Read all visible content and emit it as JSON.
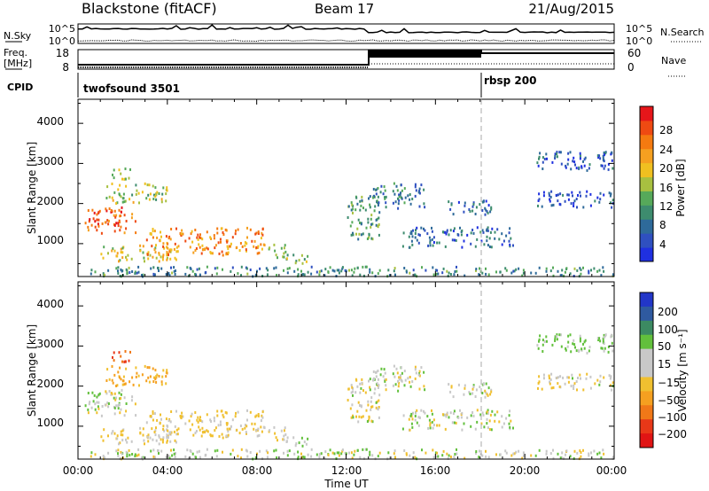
{
  "header": {
    "station": "Blackstone (fitACF)",
    "beam": "Beam 17",
    "date": "21/Aug/2015"
  },
  "noise_panel": {
    "left_label": "N.Sky",
    "left_ticks": [
      "10^5",
      "10^0"
    ],
    "right_ticks": [
      "10^5",
      "10^0"
    ],
    "right_label": "N.Search"
  },
  "freq_panel": {
    "left_label_1": "Freq.",
    "left_label_2": "[MHz]",
    "left_ticks": [
      "18",
      "8"
    ],
    "right_ticks": [
      "60",
      "0"
    ],
    "right_label": "Nave"
  },
  "cpid_panel": {
    "label": "CPID",
    "segments": [
      {
        "name": "twofsound 3501",
        "start_hour": 0
      },
      {
        "name": "rbsp 200",
        "start_hour": 18
      }
    ]
  },
  "x_axis": {
    "label": "Time UT",
    "ticks": [
      "00:00",
      "04:00",
      "08:00",
      "12:00",
      "16:00",
      "20:00",
      "00:00"
    ],
    "range_hours": [
      0,
      24
    ]
  },
  "power_panel": {
    "ylabel": "Slant Range [km]",
    "yticks": [
      "1000",
      "2000",
      "3000",
      "4000"
    ],
    "colorbar_label": "Power [dB]",
    "colorbar_ticks": [
      "4",
      "8",
      "12",
      "16",
      "20",
      "24",
      "28"
    ],
    "colors": [
      "#1f30e0",
      "#2f50c0",
      "#2e6a9a",
      "#3d8c6e",
      "#56a95a",
      "#a8c040",
      "#f0c020",
      "#f5a020",
      "#f57a10",
      "#ef4a12",
      "#e6161a"
    ]
  },
  "velocity_panel": {
    "ylabel": "Slant Range [km]",
    "yticks": [
      "1000",
      "2000",
      "3000",
      "4000"
    ],
    "colorbar_label": "Velocity [m s⁻¹]",
    "colorbar_ticks": [
      "200",
      "100",
      "50",
      "15",
      "−15",
      "−50",
      "−100",
      "−200"
    ],
    "colors": [
      "#2236c8",
      "#2f5aa0",
      "#3c8a62",
      "#62c03c",
      "#c8c8c8",
      "#c8c8c8",
      "#f0c030",
      "#f5a020",
      "#f07818",
      "#e83818",
      "#e01414"
    ]
  },
  "chart_data": {
    "type": "heatmap",
    "x_range_hours": [
      0,
      24
    ],
    "y_range_km": [
      180,
      4600
    ],
    "scatter_regions": [
      {
        "t0": 0.2,
        "t1": 2.6,
        "r0": 1250,
        "r1": 1900,
        "power": 26,
        "vel": 0
      },
      {
        "t0": 1.2,
        "t1": 4.0,
        "r0": 2000,
        "r1": 2500,
        "power": 16,
        "vel": -60
      },
      {
        "t0": 1.5,
        "t1": 2.5,
        "r0": 2600,
        "r1": 2900,
        "power": 14,
        "vel": -150
      },
      {
        "t0": 1.0,
        "t1": 4.5,
        "r0": 550,
        "r1": 950,
        "power": 18,
        "vel": -20
      },
      {
        "t0": 3.0,
        "t1": 8.4,
        "r0": 700,
        "r1": 1400,
        "power": 23,
        "vel": -20
      },
      {
        "t0": 8.4,
        "t1": 9.4,
        "r0": 650,
        "r1": 1000,
        "power": 12,
        "vel": -10
      },
      {
        "t0": 9.2,
        "t1": 10.3,
        "r0": 500,
        "r1": 750,
        "power": 14,
        "vel": 5
      },
      {
        "t0": 10.5,
        "t1": 12.5,
        "r0": 280,
        "r1": 420,
        "power": 10,
        "vel": 20
      },
      {
        "t0": 12.0,
        "t1": 13.5,
        "r0": 1100,
        "r1": 2200,
        "power": 12,
        "vel": -10
      },
      {
        "t0": 13.0,
        "t1": 15.5,
        "r0": 1850,
        "r1": 2500,
        "power": 9,
        "vel": 0
      },
      {
        "t0": 14.5,
        "t1": 19.5,
        "r0": 900,
        "r1": 1400,
        "power": 7,
        "vel": 0
      },
      {
        "t0": 16.5,
        "t1": 18.5,
        "r0": 1700,
        "r1": 2100,
        "power": 6,
        "vel": 0
      },
      {
        "t0": 20.5,
        "t1": 24.0,
        "r0": 2800,
        "r1": 3300,
        "power": 5,
        "vel": 20
      },
      {
        "t0": 20.5,
        "t1": 24.0,
        "r0": 1900,
        "r1": 2300,
        "power": 5,
        "vel": -10
      },
      {
        "t0": 0.5,
        "t1": 24.0,
        "r0": 180,
        "r1": 420,
        "power": 10,
        "vel": 0
      }
    ]
  }
}
